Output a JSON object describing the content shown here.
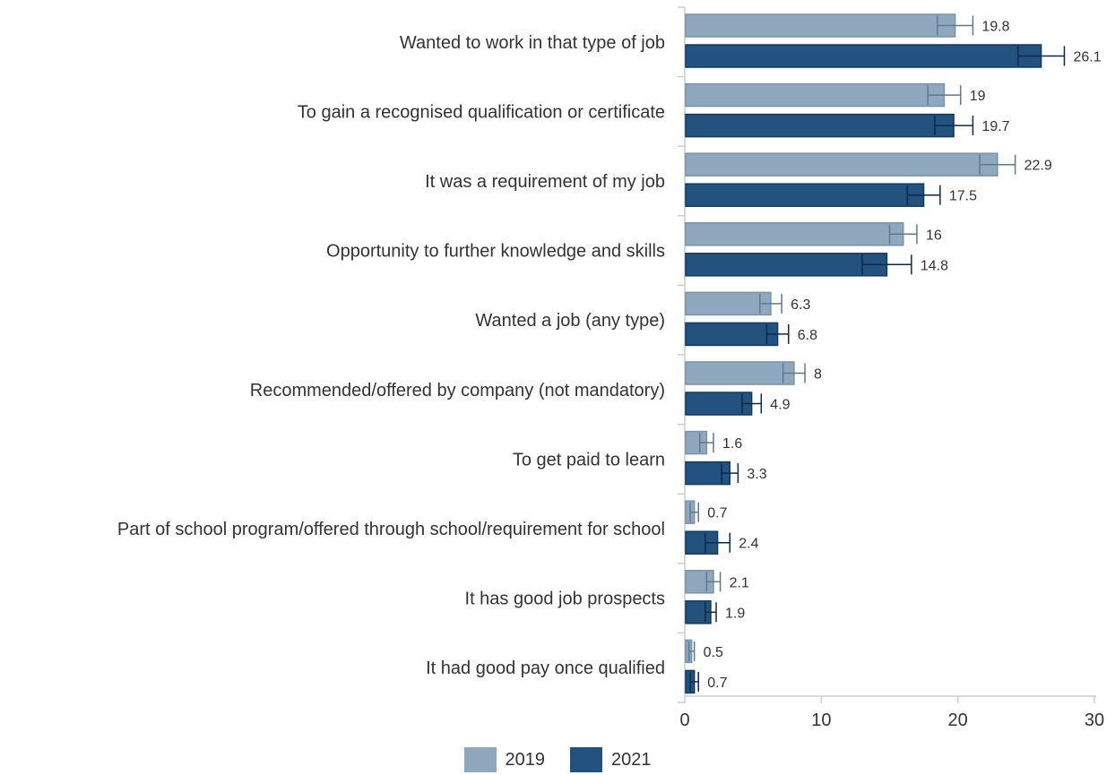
{
  "chart_data": {
    "type": "bar",
    "orientation": "horizontal",
    "title": "",
    "xlabel": "",
    "ylabel": "",
    "xlim": [
      0,
      30
    ],
    "xticks": [
      0,
      10,
      20,
      30
    ],
    "grid": false,
    "legend_position": "bottom-center",
    "categories": [
      "Wanted to work in that type of job",
      "To gain a recognised qualification or certificate",
      "It was a requirement of my job",
      "Opportunity to further knowledge and skills",
      "Wanted a job (any type)",
      "Recommended/offered by company (not mandatory)",
      "To get paid to learn",
      "Part of school program/offered through school/requirement for school",
      "It has good job prospects",
      "It had good pay once qualified"
    ],
    "series": [
      {
        "name": "2019",
        "color": "#8fa8be",
        "values": [
          19.8,
          19,
          22.9,
          16,
          6.3,
          8,
          1.6,
          0.7,
          2.1,
          0.5
        ],
        "error": [
          1.3,
          1.2,
          1.3,
          1.0,
          0.8,
          0.8,
          0.5,
          0.3,
          0.5,
          0.2
        ]
      },
      {
        "name": "2021",
        "color": "#24527e",
        "values": [
          26.1,
          19.7,
          17.5,
          14.8,
          6.8,
          4.9,
          3.3,
          2.4,
          1.9,
          0.7
        ],
        "error": [
          1.7,
          1.4,
          1.2,
          1.8,
          0.8,
          0.7,
          0.6,
          0.9,
          0.4,
          0.3
        ]
      }
    ]
  }
}
